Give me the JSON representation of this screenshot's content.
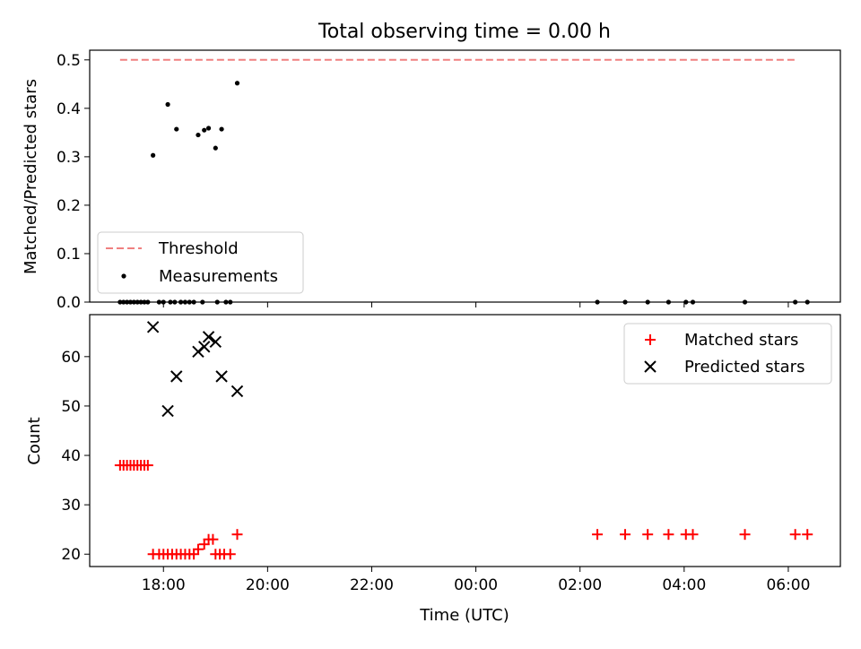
{
  "figure": {
    "title": "Total observing time = 0.00 h"
  },
  "chart_data": [
    {
      "type": "scatter",
      "panel": "top",
      "ylabel": "Matched/Predicted stars",
      "xlim": [
        "16:35",
        "07:00"
      ],
      "ylim": [
        0,
        0.52
      ],
      "yticks": [
        "0.0",
        "0.1",
        "0.2",
        "0.3",
        "0.4",
        "0.5"
      ],
      "legend": {
        "position": "lower-left",
        "entries": [
          "Threshold",
          "Measurements"
        ]
      },
      "threshold": {
        "value": 0.5,
        "x_start": "17:10",
        "x_end": "06:10",
        "color": "#f08080"
      },
      "series": [
        {
          "name": "Measurements",
          "marker": "dot",
          "color": "#000000",
          "points": [
            [
              "17:10",
              0
            ],
            [
              "17:14",
              0
            ],
            [
              "17:18",
              0
            ],
            [
              "17:22",
              0
            ],
            [
              "17:26",
              0
            ],
            [
              "17:30",
              0
            ],
            [
              "17:34",
              0
            ],
            [
              "17:38",
              0
            ],
            [
              "17:42",
              0
            ],
            [
              "17:48",
              0.303
            ],
            [
              "18:05",
              0.408
            ],
            [
              "18:15",
              0.357
            ],
            [
              "18:40",
              0.345
            ],
            [
              "18:47",
              0.355
            ],
            [
              "18:52",
              0.359
            ],
            [
              "19:00",
              0.318
            ],
            [
              "19:07",
              0.357
            ],
            [
              "19:25",
              0.452
            ],
            [
              "17:55",
              0
            ],
            [
              "18:00",
              0
            ],
            [
              "18:08",
              0
            ],
            [
              "18:13",
              0
            ],
            [
              "18:20",
              0
            ],
            [
              "18:25",
              0
            ],
            [
              "18:30",
              0
            ],
            [
              "18:35",
              0
            ],
            [
              "18:45",
              0
            ],
            [
              "19:02",
              0
            ],
            [
              "19:12",
              0
            ],
            [
              "19:17",
              0
            ],
            [
              "02:20",
              0
            ],
            [
              "02:52",
              0
            ],
            [
              "03:18",
              0
            ],
            [
              "03:42",
              0
            ],
            [
              "04:02",
              0
            ],
            [
              "04:10",
              0
            ],
            [
              "05:10",
              0
            ],
            [
              "06:08",
              0
            ],
            [
              "06:22",
              0
            ]
          ]
        }
      ]
    },
    {
      "type": "scatter",
      "panel": "bottom",
      "xlabel": "Time (UTC)",
      "ylabel": "Count",
      "xlim": [
        "16:35",
        "07:00"
      ],
      "ylim": [
        17.5,
        68.5
      ],
      "yticks": [
        "20",
        "30",
        "40",
        "50",
        "60"
      ],
      "xticks": [
        "18:00",
        "20:00",
        "22:00",
        "00:00",
        "02:00",
        "04:00",
        "06:00"
      ],
      "legend": {
        "position": "top-right",
        "entries": [
          "Matched stars",
          "Predicted stars"
        ]
      },
      "series": [
        {
          "name": "Matched stars",
          "marker": "plus",
          "color": "#ff0000",
          "points": [
            [
              "17:10",
              38
            ],
            [
              "17:14",
              38
            ],
            [
              "17:18",
              38
            ],
            [
              "17:22",
              38
            ],
            [
              "17:26",
              38
            ],
            [
              "17:30",
              38
            ],
            [
              "17:34",
              38
            ],
            [
              "17:38",
              38
            ],
            [
              "17:42",
              38
            ],
            [
              "17:48",
              20
            ],
            [
              "17:55",
              20
            ],
            [
              "18:00",
              20
            ],
            [
              "18:05",
              20
            ],
            [
              "18:10",
              20
            ],
            [
              "18:15",
              20
            ],
            [
              "18:20",
              20
            ],
            [
              "18:25",
              20
            ],
            [
              "18:30",
              20
            ],
            [
              "18:35",
              20
            ],
            [
              "18:40",
              21
            ],
            [
              "18:47",
              22
            ],
            [
              "18:52",
              23
            ],
            [
              "18:57",
              23
            ],
            [
              "19:00",
              20
            ],
            [
              "19:05",
              20
            ],
            [
              "19:10",
              20
            ],
            [
              "19:17",
              20
            ],
            [
              "19:25",
              24
            ],
            [
              "02:20",
              24
            ],
            [
              "02:52",
              24
            ],
            [
              "03:18",
              24
            ],
            [
              "03:42",
              24
            ],
            [
              "04:02",
              24
            ],
            [
              "04:10",
              24
            ],
            [
              "05:10",
              24
            ],
            [
              "06:08",
              24
            ],
            [
              "06:22",
              24
            ]
          ]
        },
        {
          "name": "Predicted stars",
          "marker": "x",
          "color": "#000000",
          "points": [
            [
              "17:48",
              66
            ],
            [
              "18:05",
              49
            ],
            [
              "18:15",
              56
            ],
            [
              "18:40",
              61
            ],
            [
              "18:47",
              62
            ],
            [
              "18:52",
              64
            ],
            [
              "19:00",
              63
            ],
            [
              "19:07",
              56
            ],
            [
              "19:25",
              53
            ]
          ]
        }
      ]
    }
  ]
}
